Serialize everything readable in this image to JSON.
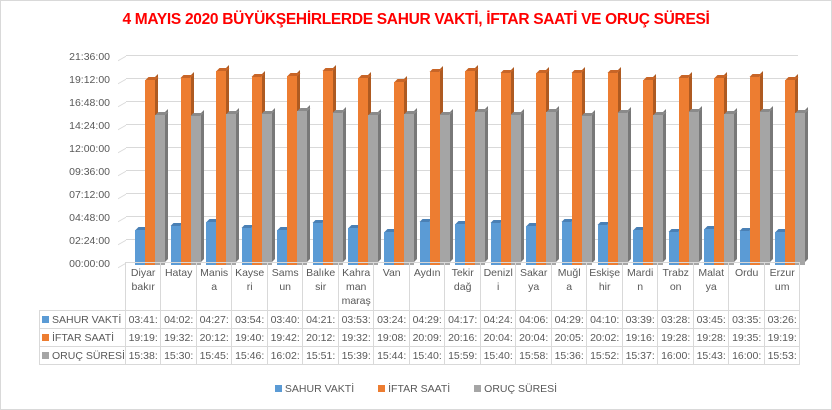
{
  "chart_data": {
    "type": "bar",
    "title": "4 MAYIS 2020 BÜYÜKŞEHİRLERDE SAHUR VAKTİ, İFTAR SAATİ VE ORUÇ SÜRESİ",
    "xlabel": "",
    "ylabel": "",
    "ylim": [
      "00:00:00",
      "21:36:00"
    ],
    "yticks": [
      "00:00:00",
      "02:24:00",
      "04:48:00",
      "07:12:00",
      "09:36:00",
      "12:00:00",
      "14:24:00",
      "16:48:00",
      "19:12:00",
      "21:36:00"
    ],
    "grid": true,
    "legend_position": "bottom",
    "categories": [
      "Diyar bakır",
      "Hatay",
      "Manis a",
      "Kayse ri",
      "Sams un",
      "Balıke sir",
      "Kahra man maraş",
      "Van",
      "Aydın",
      "Tekir dağ",
      "Denizl i",
      "Sakar ya",
      "Muğl a",
      "Eskişe hir",
      "Mardi n",
      "Trabz on",
      "Malat ya",
      "Ordu",
      "Erzur um"
    ],
    "category_lines": [
      [
        "Diyar",
        "bakır"
      ],
      [
        "Hatay"
      ],
      [
        "Manis",
        "a"
      ],
      [
        "Kayse",
        "ri"
      ],
      [
        "Sams",
        "un"
      ],
      [
        "Balıke",
        "sir"
      ],
      [
        "Kahra",
        "man",
        "maraş"
      ],
      [
        "Van"
      ],
      [
        "Aydın"
      ],
      [
        "Tekir",
        "dağ"
      ],
      [
        "Denizl",
        "i"
      ],
      [
        "Sakar",
        "ya"
      ],
      [
        "Muğl",
        "a"
      ],
      [
        "Eskişe",
        "hir"
      ],
      [
        "Mardi",
        "n"
      ],
      [
        "Trabz",
        "on"
      ],
      [
        "Malat",
        "ya"
      ],
      [
        "Ordu"
      ],
      [
        "Erzur",
        "um"
      ]
    ],
    "series": [
      {
        "name": "SAHUR VAKTİ",
        "color": "#5b9bd5",
        "values": [
          "03:41",
          "04:02",
          "04:27",
          "03:54",
          "03:40",
          "04:21",
          "03:53",
          "03:24",
          "04:29",
          "04:17",
          "04:24",
          "04:06",
          "04:29",
          "04:10",
          "03:39",
          "03:28",
          "03:45",
          "03:35",
          "03:26"
        ]
      },
      {
        "name": "İFTAR SAATİ",
        "color": "#ed7d31",
        "values": [
          "19:19",
          "19:32",
          "20:12",
          "19:40",
          "19:42",
          "20:12",
          "19:32",
          "19:08",
          "20:09",
          "20:16",
          "20:04",
          "20:04",
          "20:05",
          "20:02",
          "19:16",
          "19:28",
          "19:28",
          "19:35",
          "19:19"
        ]
      },
      {
        "name": "ORUÇ SÜRESİ",
        "color": "#a5a5a5",
        "values": [
          "15:38",
          "15:30",
          "15:45",
          "15:46",
          "16:02",
          "15:51",
          "15:39",
          "15:44",
          "15:40",
          "15:59",
          "15:40",
          "15:58",
          "15:36",
          "15:52",
          "15:37",
          "16:00",
          "15:43",
          "16:00",
          "15:53"
        ]
      }
    ],
    "table_display": {
      "rows": [
        {
          "label": "SAHUR VAKTİ",
          "cells": [
            "03:41:",
            "04:02:",
            "04:27:",
            "03:54:",
            "03:40:",
            "04:21:",
            "03:53:",
            "03:24:",
            "04:29:",
            "04:17:",
            "04:24:",
            "04:06:",
            "04:29:",
            "04:10:",
            "03:39:",
            "03:28:",
            "03:45:",
            "03:35:",
            "03:26:"
          ]
        },
        {
          "label": "İFTAR SAATİ",
          "cells": [
            "19:19:",
            "19:32:",
            "20:12:",
            "19:40:",
            "19:42:",
            "20:12:",
            "19:32:",
            "19:08:",
            "20:09:",
            "20:16:",
            "20:04:",
            "20:04:",
            "20:05:",
            "20:02:",
            "19:16:",
            "19:28:",
            "19:28:",
            "19:35:",
            "19:19:"
          ]
        },
        {
          "label": "ORUÇ SÜRESİ",
          "cells": [
            "15:38:",
            "15:30:",
            "15:45:",
            "15:46:",
            "16:02:",
            "15:51:",
            "15:39:",
            "15:44:",
            "15:40:",
            "15:59:",
            "15:40:",
            "15:58:",
            "15:36:",
            "15:52:",
            "15:37:",
            "16:00:",
            "15:43:",
            "16:00:",
            "15:53:"
          ]
        }
      ]
    }
  },
  "legend": [
    {
      "label": "SAHUR VAKTİ",
      "color": "#5b9bd5"
    },
    {
      "label": "İFTAR SAATİ",
      "color": "#ed7d31"
    },
    {
      "label": "ORUÇ SÜRESİ",
      "color": "#a5a5a5"
    }
  ],
  "colors": {
    "title": "#ff0000",
    "axis_text": "#595959",
    "grid": "#d9d9d9"
  }
}
